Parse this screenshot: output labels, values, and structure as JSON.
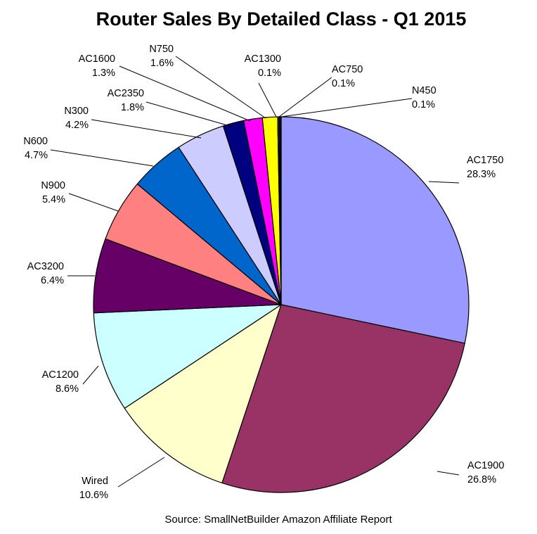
{
  "chart_data": {
    "type": "pie",
    "title": "Router Sales By Detailed Class - Q1 2015",
    "source": "Source: SmallNetBuilder Amazon Affiliate Report",
    "slices": [
      {
        "label": "AC1750",
        "value": 28.3,
        "display": "28.3%",
        "color": "#9999ff"
      },
      {
        "label": "AC1900",
        "value": 26.8,
        "display": "26.8%",
        "color": "#993366"
      },
      {
        "label": "Wired",
        "value": 10.6,
        "display": "10.6%",
        "color": "#ffffcc"
      },
      {
        "label": "AC1200",
        "value": 8.6,
        "display": "8.6%",
        "color": "#ccffff"
      },
      {
        "label": "AC3200",
        "value": 6.4,
        "display": "6.4%",
        "color": "#660066"
      },
      {
        "label": "N900",
        "value": 5.4,
        "display": "5.4%",
        "color": "#ff8080"
      },
      {
        "label": "N600",
        "value": 4.7,
        "display": "4.7%",
        "color": "#0066cc"
      },
      {
        "label": "N300",
        "value": 4.2,
        "display": "4.2%",
        "color": "#ccccff"
      },
      {
        "label": "AC2350",
        "value": 1.8,
        "display": "1.8%",
        "color": "#000080"
      },
      {
        "label": "N750",
        "value": 1.6,
        "display": "1.6%",
        "color": "#ff00ff"
      },
      {
        "label": "AC1600",
        "value": 1.3,
        "display": "1.3%",
        "color": "#ffff00"
      },
      {
        "label": "AC1300",
        "value": 0.1,
        "display": "0.1%",
        "color": "#00ffff"
      },
      {
        "label": "AC750",
        "value": 0.1,
        "display": "0.1%",
        "color": "#800080"
      },
      {
        "label": "N450",
        "value": 0.1,
        "display": "0.1%",
        "color": "#800000"
      }
    ],
    "start_position": "top, clockwise",
    "legend": "none (labels with leader lines)"
  }
}
